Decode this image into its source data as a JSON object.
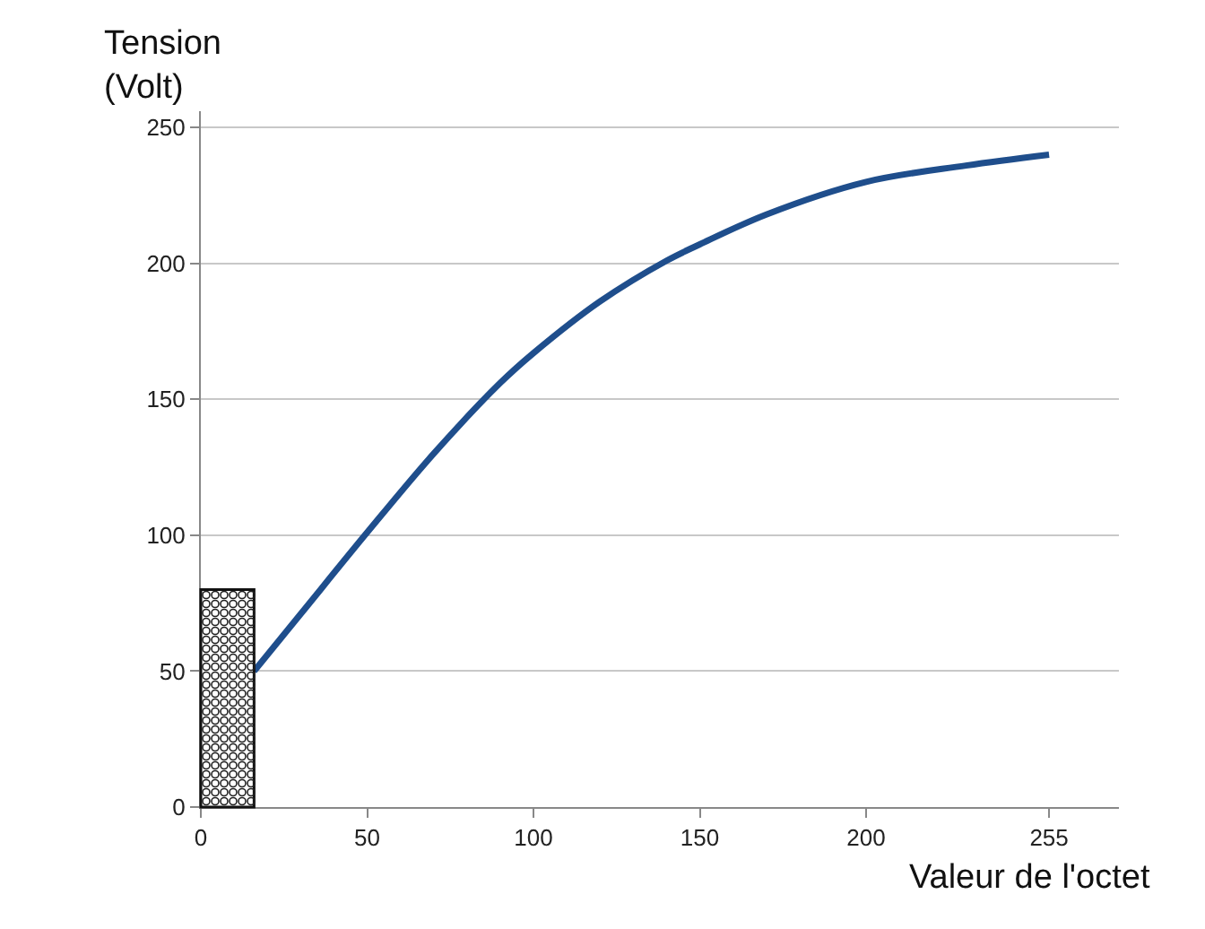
{
  "chart_data": {
    "type": "line",
    "xlabel": "Valeur de l'octet",
    "ylabel": "Tension\n(Volt)",
    "x": [
      16,
      30,
      50,
      70,
      90,
      100,
      120,
      140,
      150,
      170,
      200,
      230,
      255
    ],
    "series": [
      {
        "color": "#1f4e8c",
        "values": [
          50,
          71,
          101,
          130,
          156,
          167,
          186,
          201,
          207,
          218,
          230,
          236,
          240
        ]
      }
    ],
    "xlim": [
      0,
      276
    ],
    "ylim": [
      0,
      256
    ],
    "xticks": [
      0,
      50,
      100,
      150,
      200,
      255
    ],
    "yticks": [
      0,
      50,
      100,
      150,
      200,
      250
    ],
    "grid": "y",
    "marker": "none",
    "line_style": "solid"
  }
}
